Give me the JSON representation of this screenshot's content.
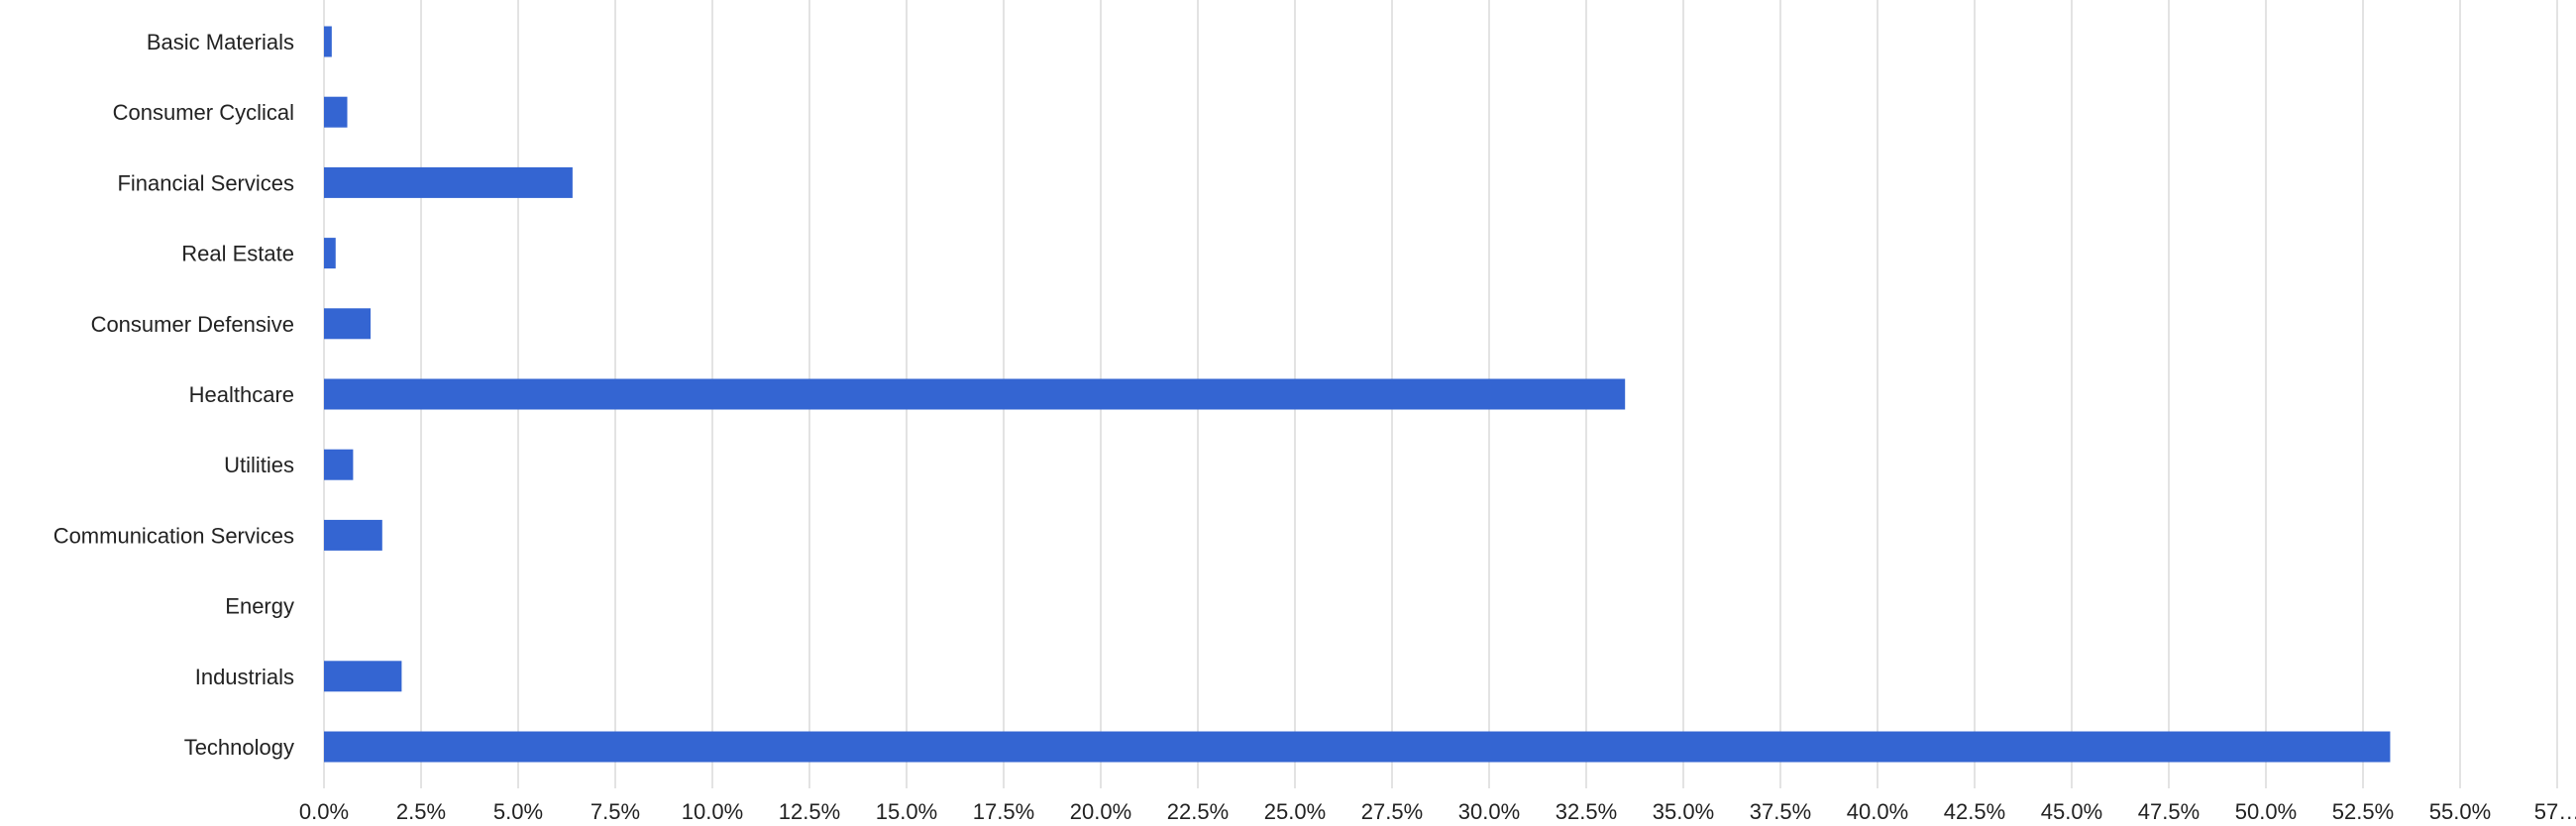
{
  "chart_data": {
    "type": "bar",
    "orientation": "horizontal",
    "title": "",
    "xlabel": "",
    "ylabel": "",
    "grid": true,
    "legend": "none",
    "bar_color": "#3465d2",
    "xlim": [
      0,
      58
    ],
    "x_ticks": [
      0,
      2.5,
      5,
      7.5,
      10,
      12.5,
      15,
      17.5,
      20,
      22.5,
      25,
      27.5,
      30,
      32.5,
      35,
      37.5,
      40,
      42.5,
      45,
      47.5,
      50,
      52.5,
      55,
      57.5
    ],
    "x_tick_labels": [
      "0.0%",
      "2.5%",
      "5.0%",
      "7.5%",
      "10.0%",
      "12.5%",
      "15.0%",
      "17.5%",
      "20.0%",
      "22.5%",
      "25.0%",
      "27.5%",
      "30.0%",
      "32.5%",
      "35.0%",
      "37.5%",
      "40.0%",
      "42.5%",
      "45.0%",
      "47.5%",
      "50.0%",
      "52.5%",
      "55.0%",
      "57…"
    ],
    "categories": [
      "Basic Materials",
      "Consumer Cyclical",
      "Financial Services",
      "Real Estate",
      "Consumer Defensive",
      "Healthcare",
      "Utilities",
      "Communication Services",
      "Energy",
      "Industrials",
      "Technology"
    ],
    "values": [
      0.2,
      0.6,
      6.4,
      0.3,
      1.2,
      33.5,
      0.75,
      1.5,
      0.0,
      2.0,
      53.2
    ]
  }
}
